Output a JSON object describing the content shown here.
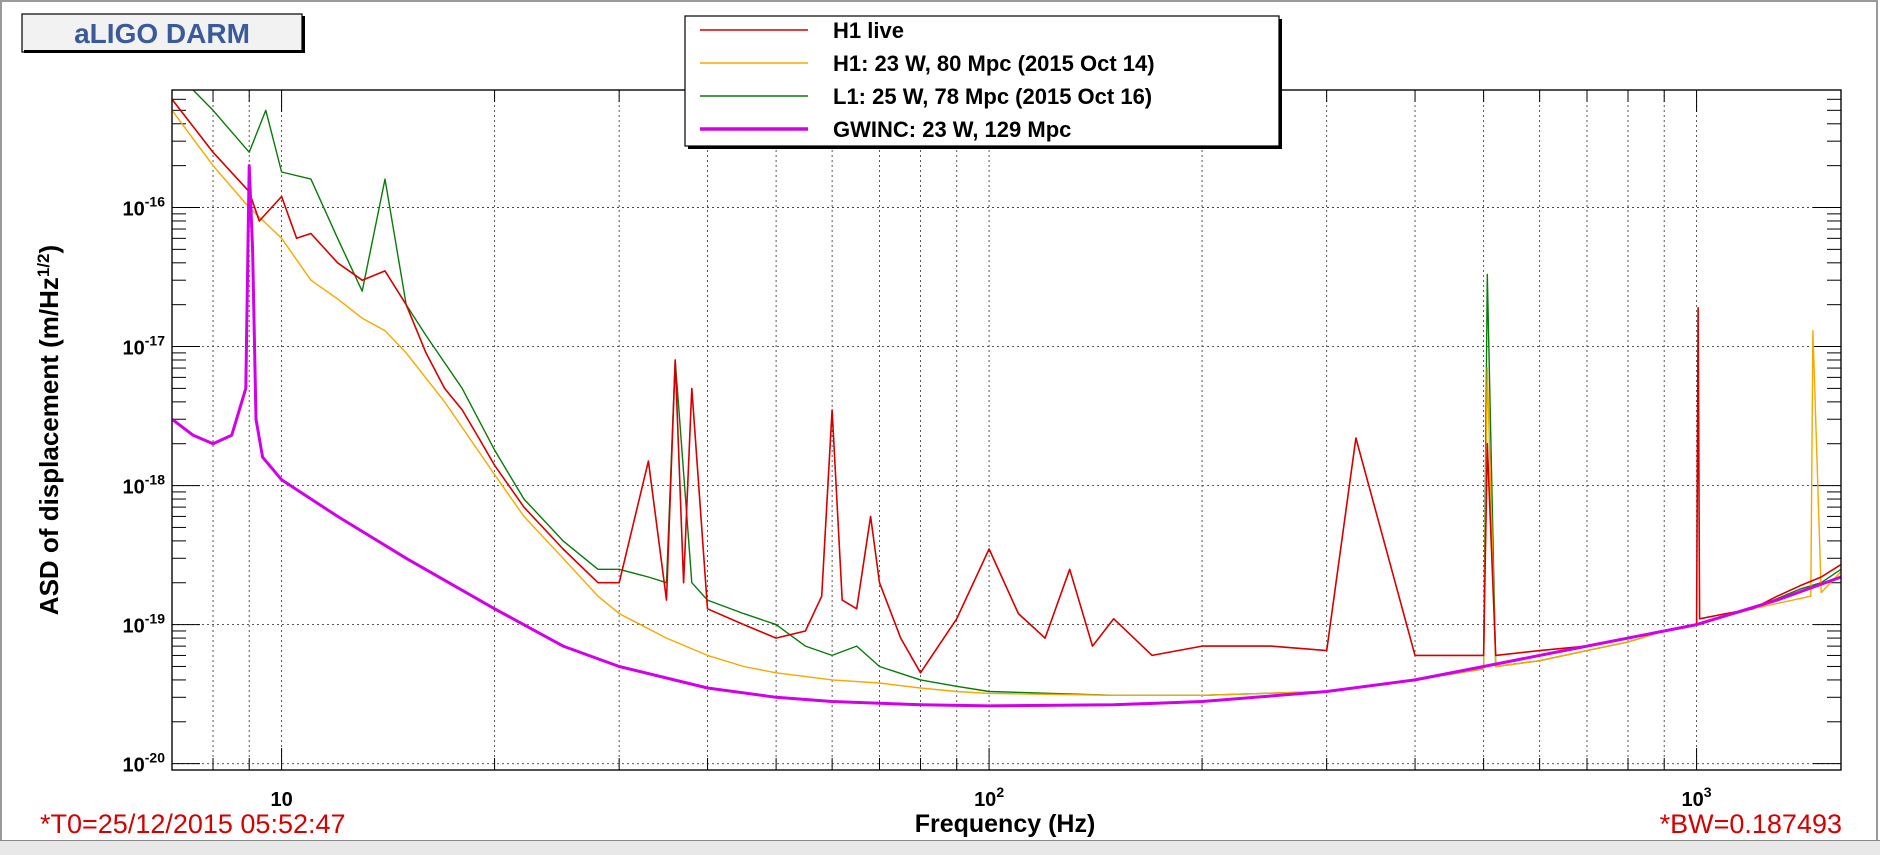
{
  "window": {
    "title": "aLIGO DARM",
    "footer_left": "*T0=25/12/2015 05:52:47",
    "footer_right": "*BW=0.187493"
  },
  "colors": {
    "h1_live": "#d40000",
    "h1_ref": "#f5a800",
    "l1_ref": "#0a7a0a",
    "gwinc": "#d000e8",
    "footer_text": "#d40000",
    "title_text": "#3a5a9a"
  },
  "chart_data": {
    "type": "line",
    "title": "aLIGO DARM",
    "xlabel": "Frequency (Hz)",
    "ylabel": "ASD of displacement (m/Hz",
    "ylabel_sup": "1/2",
    "ylabel_tail": ")",
    "xscale": "log",
    "yscale": "log",
    "xlim": [
      7,
      1600
    ],
    "ylim": [
      9e-21,
      7e-16
    ],
    "x_ticks": [
      {
        "value": 10,
        "base": "10",
        "exp": ""
      },
      {
        "value": 100,
        "base": "10",
        "exp": "2"
      },
      {
        "value": 1000,
        "base": "10",
        "exp": "3"
      }
    ],
    "y_ticks": [
      {
        "value": 1e-20,
        "base": "10",
        "exp": "-20"
      },
      {
        "value": 1e-19,
        "base": "10",
        "exp": "-19"
      },
      {
        "value": 1e-18,
        "base": "10",
        "exp": "-18"
      },
      {
        "value": 1e-17,
        "base": "10",
        "exp": "-17"
      },
      {
        "value": 1e-16,
        "base": "10",
        "exp": "-16"
      }
    ],
    "grid": true,
    "legend_position": "top-center",
    "series": [
      {
        "name": "H1 live",
        "color": "#d40000",
        "width": 1.6,
        "x": [
          7,
          8,
          9,
          9.3,
          10,
          10.5,
          11,
          12,
          13,
          14,
          15,
          16,
          17,
          18,
          19,
          20,
          22,
          25,
          28,
          30,
          33,
          35,
          36,
          37,
          38,
          40,
          45,
          50,
          55,
          58,
          60,
          62,
          65,
          68,
          70,
          75,
          80,
          90,
          100,
          110,
          120,
          130,
          140,
          150,
          170,
          200,
          250,
          300,
          330,
          400,
          500,
          506,
          520,
          600,
          700,
          800,
          900,
          1000,
          1005,
          1010,
          1100,
          1200,
          1300,
          1400,
          1500,
          1600
        ],
        "y": [
          6e-16,
          2.5e-16,
          1.3e-16,
          8e-17,
          1.2e-16,
          6e-17,
          6.5e-17,
          4e-17,
          3e-17,
          3.5e-17,
          2e-17,
          9e-18,
          5e-18,
          3.5e-18,
          2.2e-18,
          1.4e-18,
          7e-19,
          3.5e-19,
          2e-19,
          2e-19,
          1.5e-18,
          1.5e-19,
          8e-18,
          2e-19,
          5e-18,
          1.3e-19,
          1e-19,
          8e-20,
          9e-20,
          1.6e-19,
          3.5e-18,
          1.5e-19,
          1.3e-19,
          6e-19,
          2e-19,
          8e-20,
          4.5e-20,
          1.1e-19,
          3.5e-19,
          1.2e-19,
          8e-20,
          2.5e-19,
          7e-20,
          1.1e-19,
          6e-20,
          7e-20,
          7e-20,
          6.5e-20,
          2.2e-18,
          6e-20,
          6e-20,
          2e-18,
          6e-20,
          6.5e-20,
          7e-20,
          8e-20,
          9e-20,
          1e-19,
          1.9e-17,
          1.1e-19,
          1.2e-19,
          1.3e-19,
          1.6e-19,
          1.9e-19,
          2.2e-19,
          2.7e-19
        ]
      },
      {
        "name": "H1: 23 W, 80 Mpc (2015 Oct 14)",
        "color": "#f5a800",
        "width": 1.4,
        "x": [
          7,
          8,
          9,
          10,
          11,
          12,
          13,
          14,
          15,
          17,
          20,
          22,
          25,
          28,
          30,
          35,
          40,
          45,
          50,
          60,
          70,
          80,
          90,
          100,
          150,
          200,
          300,
          400,
          500,
          506,
          520,
          600,
          700,
          800,
          900,
          1000,
          1200,
          1450,
          1460,
          1500,
          1600
        ],
        "y": [
          5e-16,
          2e-16,
          1e-16,
          6e-17,
          3e-17,
          2.2e-17,
          1.6e-17,
          1.3e-17,
          9e-18,
          4e-18,
          1.2e-18,
          6e-19,
          3e-19,
          1.6e-19,
          1.2e-19,
          8e-20,
          6e-20,
          5e-20,
          4.5e-20,
          4e-20,
          3.8e-20,
          3.5e-20,
          3.3e-20,
          3.2e-20,
          3.1e-20,
          3.1e-20,
          3.3e-20,
          4e-20,
          4.8e-20,
          7e-18,
          5e-20,
          5.5e-20,
          6.5e-20,
          7.5e-20,
          9e-20,
          1e-19,
          1.3e-19,
          1.6e-19,
          1.3e-17,
          1.7e-19,
          2.4e-19
        ]
      },
      {
        "name": "L1: 25 W, 78 Mpc (2015 Oct 16)",
        "color": "#0a7a0a",
        "width": 1.4,
        "x": [
          7,
          8,
          9,
          9.5,
          10,
          11,
          12,
          13,
          14,
          15,
          16,
          18,
          20,
          22,
          25,
          28,
          30,
          33,
          35,
          36,
          38,
          40,
          45,
          50,
          55,
          60,
          65,
          70,
          80,
          90,
          100,
          150,
          200,
          300,
          400,
          500,
          506,
          520,
          600,
          700,
          800,
          900,
          1000,
          1200,
          1400,
          1500,
          1600
        ],
        "y": [
          1e-15,
          5e-16,
          2.5e-16,
          5e-16,
          1.8e-16,
          1.6e-16,
          6e-17,
          2.5e-17,
          1.6e-16,
          2e-17,
          1.2e-17,
          5e-18,
          1.8e-18,
          8e-19,
          4e-19,
          2.5e-19,
          2.5e-19,
          2.2e-19,
          2e-19,
          8e-18,
          2e-19,
          1.5e-19,
          1.2e-19,
          1e-19,
          7e-20,
          6e-20,
          7e-20,
          5e-20,
          4e-20,
          3.6e-20,
          3.3e-20,
          3.1e-20,
          3.1e-20,
          3.3e-20,
          4e-20,
          4.8e-20,
          3.3e-17,
          5e-20,
          5.5e-20,
          6.5e-20,
          7.5e-20,
          9e-20,
          1e-19,
          1.3e-19,
          1.8e-19,
          2e-19,
          2.5e-19
        ]
      },
      {
        "name": "GWINC: 23 W, 129 Mpc",
        "color": "#d000e8",
        "width": 3,
        "x": [
          7,
          7.5,
          8,
          8.5,
          8.9,
          9.0,
          9.1,
          9.2,
          9.4,
          10,
          12,
          15,
          20,
          25,
          30,
          40,
          50,
          60,
          80,
          100,
          150,
          200,
          300,
          400,
          500,
          700,
          1000,
          1300,
          1600
        ],
        "y": [
          3e-18,
          2.3e-18,
          2e-18,
          2.3e-18,
          5e-18,
          2e-16,
          5e-17,
          3e-18,
          1.6e-18,
          1.1e-18,
          6e-19,
          3e-19,
          1.3e-19,
          7e-20,
          5e-20,
          3.5e-20,
          3e-20,
          2.8e-20,
          2.65e-20,
          2.6e-20,
          2.65e-20,
          2.8e-20,
          3.3e-20,
          4e-20,
          5e-20,
          7e-20,
          1e-19,
          1.5e-19,
          2.2e-19
        ]
      }
    ]
  }
}
